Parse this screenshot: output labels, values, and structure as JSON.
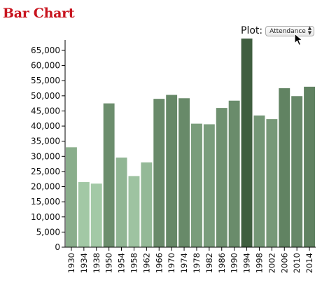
{
  "title": "Bar Chart",
  "controls": {
    "plot_label": "Plot:",
    "selected_option": "Attendance",
    "arrows_glyph": "▲▼"
  },
  "cursor_icon": "arrow-pointer-icon",
  "colors": {
    "title": "#c8141e",
    "bar_light": "#a3c9a6",
    "bar_dark": "#3f5e3f",
    "axis": "#000000"
  },
  "chart_data": {
    "type": "bar",
    "title": "Bar Chart",
    "xlabel": "",
    "ylabel": "",
    "categories": [
      "1930",
      "1934",
      "1938",
      "1950",
      "1954",
      "1958",
      "1962",
      "1966",
      "1970",
      "1974",
      "1978",
      "1982",
      "1986",
      "1990",
      "1994",
      "1998",
      "2002",
      "2006",
      "2010",
      "2014"
    ],
    "values": [
      33000,
      21500,
      21000,
      47500,
      29600,
      23500,
      28000,
      49000,
      50300,
      49200,
      40800,
      40600,
      46000,
      48400,
      68900,
      43500,
      42300,
      52500,
      49900,
      53000
    ],
    "ylim": [
      0,
      68000
    ],
    "yticks": [
      0,
      5000,
      10000,
      15000,
      20000,
      25000,
      30000,
      35000,
      40000,
      45000,
      50000,
      55000,
      60000,
      65000
    ],
    "ytick_labels": [
      "0",
      "5,000",
      "10,000",
      "15,000",
      "20,000",
      "25,000",
      "30,000",
      "35,000",
      "40,000",
      "45,000",
      "50,000",
      "55,000",
      "60,000",
      "65,000"
    ],
    "grid": false,
    "color_encoding": "darker green for larger value"
  }
}
